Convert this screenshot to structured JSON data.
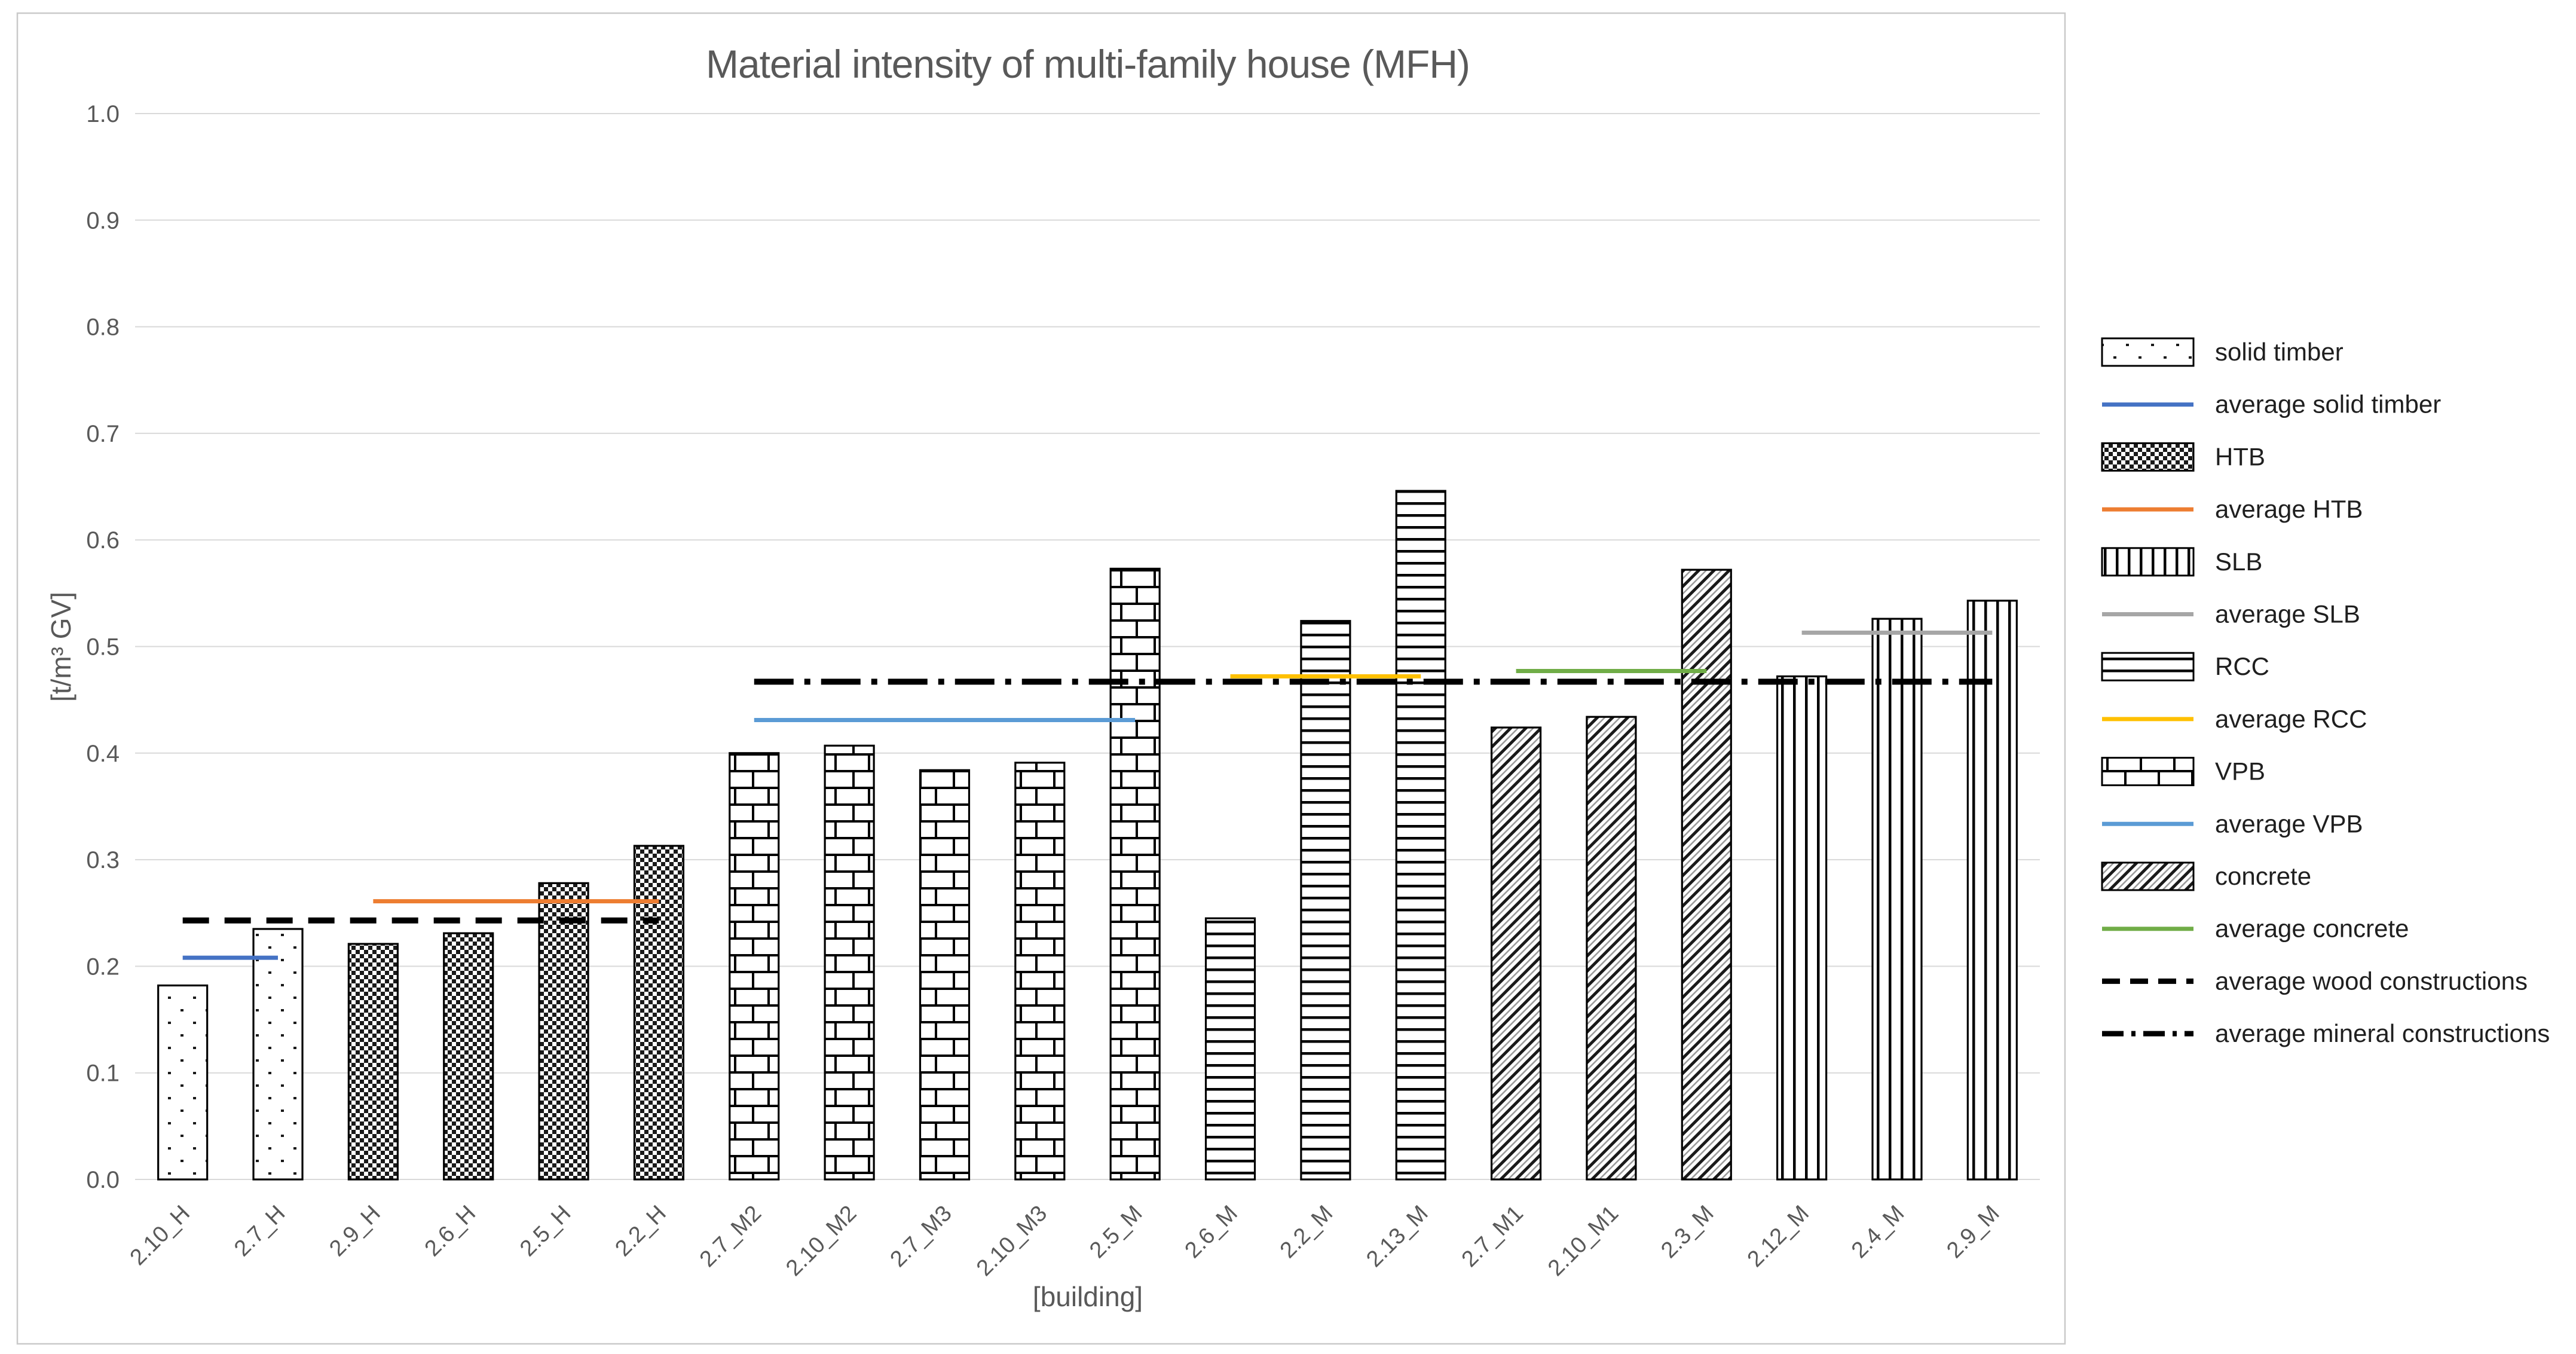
{
  "chart_data": {
    "type": "bar",
    "title": "Material intensity of multi-family house (MFH)",
    "xlabel": "[building]",
    "ylabel": "[t/m³ GV]",
    "ylim": [
      0.0,
      1.0
    ],
    "ytick_step": 0.1,
    "grid": true,
    "legend_position": "right",
    "yticks": [
      "0.0",
      "0.1",
      "0.2",
      "0.3",
      "0.4",
      "0.5",
      "0.6",
      "0.7",
      "0.8",
      "0.9",
      "1.0"
    ],
    "categories": [
      "2.10_H",
      "2.7_H",
      "2.9_H",
      "2.6_H",
      "2.5_H",
      "2.2_H",
      "2.7_M2",
      "2.10_M2",
      "2.7_M3",
      "2.10_M3",
      "2.5_M",
      "2.6_M",
      "2.2_M",
      "2.13_M",
      "2.7_M1",
      "2.10_M1",
      "2.3_M",
      "2.12_M",
      "2.4_M",
      "2.9_M"
    ],
    "series": [
      {
        "name": "solid timber",
        "pattern": "dots",
        "indices": [
          0,
          1
        ],
        "values": [
          0.182,
          0.235
        ]
      },
      {
        "name": "HTB",
        "pattern": "check",
        "indices": [
          2,
          3,
          4,
          5
        ],
        "values": [
          0.221,
          0.231,
          0.278,
          0.313
        ]
      },
      {
        "name": "SLB",
        "pattern": "vlines",
        "indices": [
          17,
          18,
          19
        ],
        "values": [
          0.472,
          0.526,
          0.543
        ]
      },
      {
        "name": "RCC",
        "pattern": "hlines",
        "indices": [
          11,
          12,
          13
        ],
        "values": [
          0.245,
          0.524,
          0.646
        ]
      },
      {
        "name": "VPB",
        "pattern": "brick",
        "indices": [
          6,
          7,
          8,
          9,
          10
        ],
        "values": [
          0.4,
          0.407,
          0.384,
          0.391,
          0.573
        ]
      },
      {
        "name": "concrete",
        "pattern": "diag",
        "indices": [
          14,
          15,
          16
        ],
        "values": [
          0.424,
          0.434,
          0.572
        ]
      }
    ],
    "lines": [
      {
        "name": "average solid timber",
        "color": "#4472C4",
        "dash": "solid",
        "value": 0.208,
        "span": [
          0,
          1
        ]
      },
      {
        "name": "average HTB",
        "color": "#ED7D31",
        "dash": "solid",
        "value": 0.261,
        "span": [
          2,
          5
        ]
      },
      {
        "name": "average SLB",
        "color": "#A6A6A6",
        "dash": "solid",
        "value": 0.513,
        "span": [
          17,
          19
        ]
      },
      {
        "name": "average RCC",
        "color": "#FFC000",
        "dash": "solid",
        "value": 0.472,
        "span": [
          11,
          13
        ]
      },
      {
        "name": "average VPB",
        "color": "#5B9BD5",
        "dash": "solid",
        "value": 0.431,
        "span": [
          6,
          10
        ]
      },
      {
        "name": "average concrete",
        "color": "#70AD47",
        "dash": "solid",
        "value": 0.477,
        "span": [
          14,
          16
        ]
      },
      {
        "name": "average wood constructions",
        "color": "#000000",
        "dash": "dashed",
        "value": 0.243,
        "span": [
          0,
          5
        ]
      },
      {
        "name": "average mineral constructions",
        "color": "#000000",
        "dash": "dashdot",
        "value": 0.467,
        "span": [
          6,
          19
        ]
      }
    ],
    "legend": [
      {
        "label": "solid timber",
        "swatch": "rect",
        "pattern": "dots"
      },
      {
        "label": "average solid timber",
        "swatch": "line",
        "color": "#4472C4",
        "dash": "solid"
      },
      {
        "label": "HTB",
        "swatch": "rect",
        "pattern": "check"
      },
      {
        "label": "average HTB",
        "swatch": "line",
        "color": "#ED7D31",
        "dash": "solid"
      },
      {
        "label": "SLB",
        "swatch": "rect",
        "pattern": "vlines"
      },
      {
        "label": "average SLB",
        "swatch": "line",
        "color": "#A6A6A6",
        "dash": "solid"
      },
      {
        "label": "RCC",
        "swatch": "rect",
        "pattern": "hlines"
      },
      {
        "label": "average RCC",
        "swatch": "line",
        "color": "#FFC000",
        "dash": "solid"
      },
      {
        "label": "VPB",
        "swatch": "rect",
        "pattern": "brick"
      },
      {
        "label": "average VPB",
        "swatch": "line",
        "color": "#5B9BD5",
        "dash": "solid"
      },
      {
        "label": "concrete",
        "swatch": "rect",
        "pattern": "diag"
      },
      {
        "label": "average concrete",
        "swatch": "line",
        "color": "#70AD47",
        "dash": "solid"
      },
      {
        "label": "average wood constructions",
        "swatch": "line",
        "color": "#000000",
        "dash": "dashed"
      },
      {
        "label": "average mineral constructions",
        "swatch": "line",
        "color": "#000000",
        "dash": "dashdot"
      }
    ],
    "colors": {
      "grid": "#D9D9D9",
      "chart_border": "#C9C9C9",
      "tick_text": "#595959",
      "title_text": "#595959",
      "legend_text": "#1F1F1F",
      "bar_stroke": "#000000"
    }
  }
}
